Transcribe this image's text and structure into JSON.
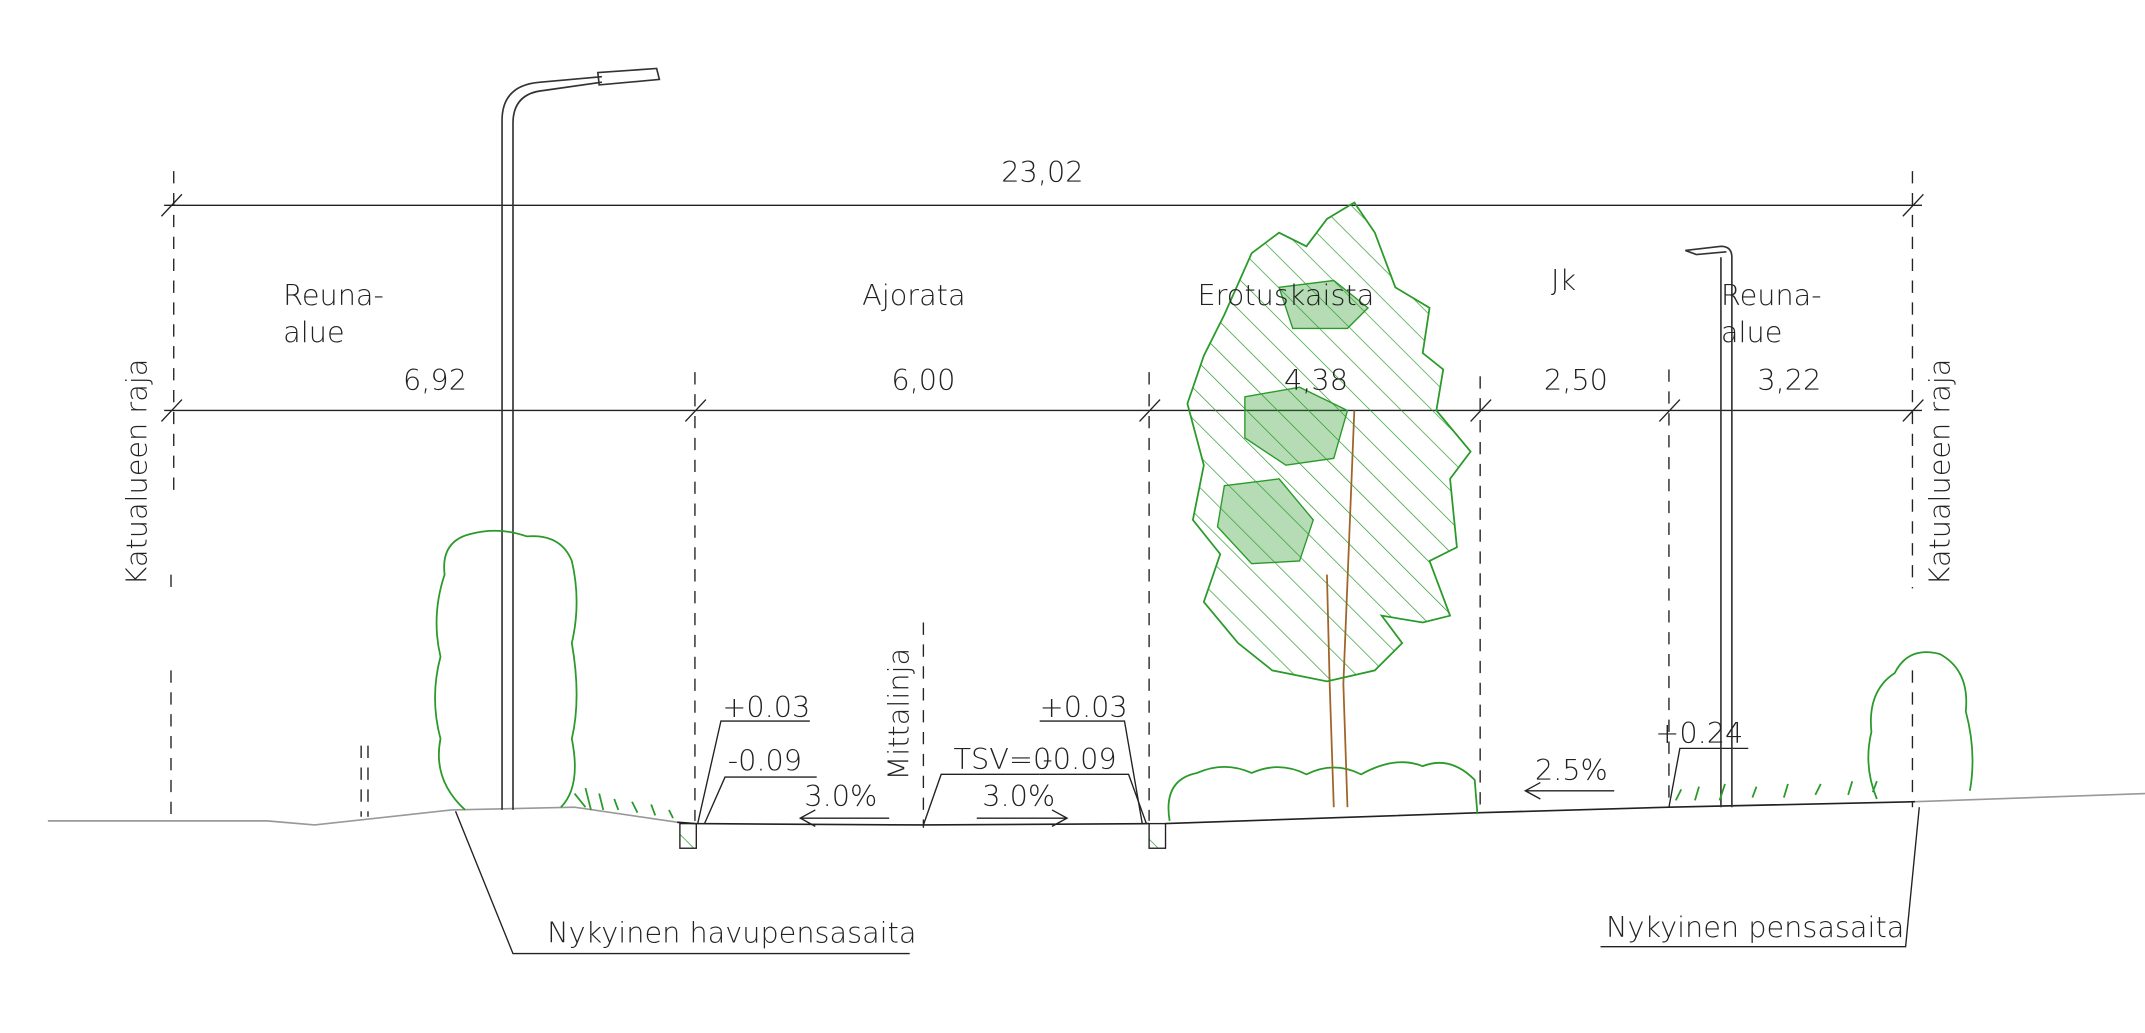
{
  "title_dimension": "23,02",
  "zones": [
    {
      "label_lines": [
        "Reuna-",
        "alue"
      ],
      "width": "6,92"
    },
    {
      "label_lines": [
        "Ajorata"
      ],
      "width": "6,00"
    },
    {
      "label_lines": [
        "Erotuskaista"
      ],
      "width": "4,38"
    },
    {
      "label_lines": [
        "Jk"
      ],
      "width": "2,50"
    },
    {
      "label_lines": [
        "Reuna-",
        "alue"
      ],
      "width": "3,22"
    }
  ],
  "boundary_left": "Katualueen raja",
  "boundary_right": "Katualueen raja",
  "centerline": "Mittalinja",
  "levels": {
    "left_curb_top": "+0.03",
    "left_curb_bottom": "-0.09",
    "left_slope": "3.0%",
    "tsv": "TSV=0",
    "right_curb_bottom": "-0.09",
    "right_curb_top": "+0.03",
    "right_slope": "3.0%",
    "walkway_slope": "2.5%",
    "walkway_level": "+0.24"
  },
  "notes": {
    "left": "Nykyinen havupensasaita",
    "right": "Nykyinen pensasaita"
  }
}
